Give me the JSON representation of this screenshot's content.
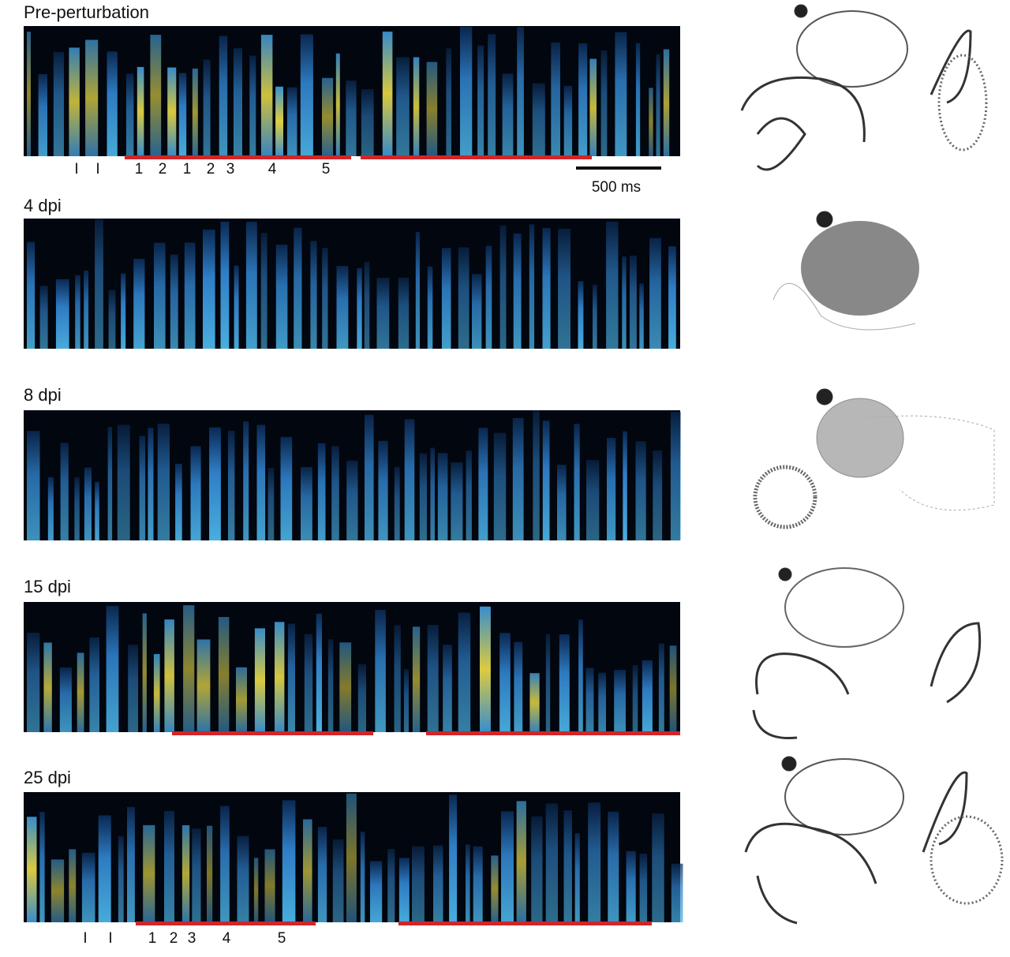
{
  "panels": [
    {
      "label": "Pre-perturbation",
      "syllables": [
        "I",
        "I",
        "1",
        "2",
        "1",
        "2",
        "3",
        "4",
        "5"
      ],
      "scale_bar": "500 ms"
    },
    {
      "label": "4 dpi"
    },
    {
      "label": "8 dpi"
    },
    {
      "label": "15 dpi"
    },
    {
      "label": "25 dpi",
      "syllables": [
        "I",
        "I",
        "1",
        "2",
        "3",
        "4",
        "5"
      ]
    }
  ]
}
